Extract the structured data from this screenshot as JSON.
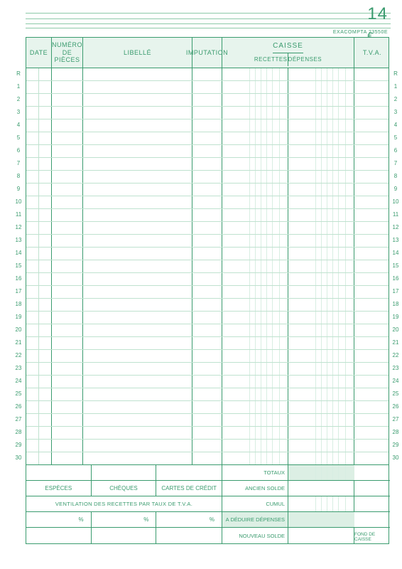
{
  "page_number": "14",
  "currency_symbol": "€",
  "brand": "EXACOMPTA 23550E",
  "headers": {
    "date": "DATE",
    "numero": "NUMÉRO\nDE PIÈCES",
    "libelle": "LIBELLÉ",
    "imputation": "IMPUTATION",
    "caisse": "CAISSE",
    "recettes": "RECETTES",
    "depenses": "DÉPENSES",
    "tva": "T.V.A."
  },
  "row_count": 30,
  "first_row_label": "R",
  "footer_left": {
    "especes": "ESPÈCES",
    "cheques": "CHÈQUES",
    "cartes": "CARTES DE CRÉDIT",
    "ventilation": "VENTILATION DES RECETTES PAR TAUX DE T.V.A.",
    "pc": "%"
  },
  "footer_mid": {
    "totaux": "TOTAUX",
    "ancien": "ANCIEN SOLDE",
    "cumul": "CUMUL",
    "deduire": "A DÉDUIRE DÉPENSES",
    "nouveau": "NOUVEAU SOLDE"
  },
  "footer_right": {
    "fond": "FOND DE CAISSE"
  },
  "colors": {
    "ink": "#3a9b6e",
    "faint": "#bfe2cf",
    "tint": "#e7f4ed",
    "shade": "#dcefe4"
  },
  "money_rule_positions": [
    38,
    46,
    54,
    62,
    70,
    80
  ]
}
